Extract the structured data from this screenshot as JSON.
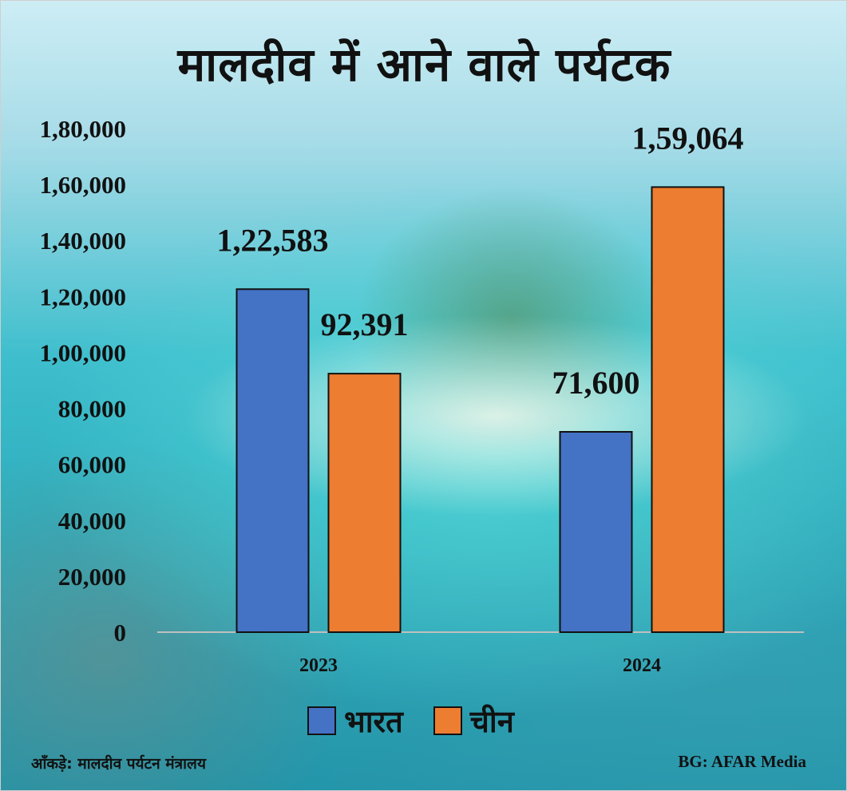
{
  "title": "मालदीव में आने वाले पर्यटक",
  "source": "आँकड़े: मालदीव पर्यटन मंत्रालय",
  "credit": "BG: AFAR Media",
  "colors": {
    "india": "#4472C4",
    "china": "#ED7D31"
  },
  "chart_data": {
    "type": "bar",
    "title": "मालदीव में आने वाले पर्यटक",
    "categories": [
      "2023",
      "2024"
    ],
    "series": [
      {
        "name": "भारत",
        "values": [
          122583,
          71600
        ],
        "value_labels": [
          "1,22,583",
          "71,600"
        ]
      },
      {
        "name": "चीन",
        "values": [
          92391,
          159064
        ],
        "value_labels": [
          "92,391",
          "1,59,064"
        ]
      }
    ],
    "ylim": [
      0,
      180000
    ],
    "yticks": [
      0,
      20000,
      40000,
      60000,
      80000,
      100000,
      120000,
      140000,
      160000,
      180000
    ],
    "ytick_labels": [
      "0",
      "20,000",
      "40,000",
      "60,000",
      "80,000",
      "1,00,000",
      "1,20,000",
      "1,40,000",
      "1,60,000",
      "1,80,000"
    ],
    "xlabel": "",
    "ylabel": "",
    "grid": false,
    "legend": "bottom-center"
  }
}
